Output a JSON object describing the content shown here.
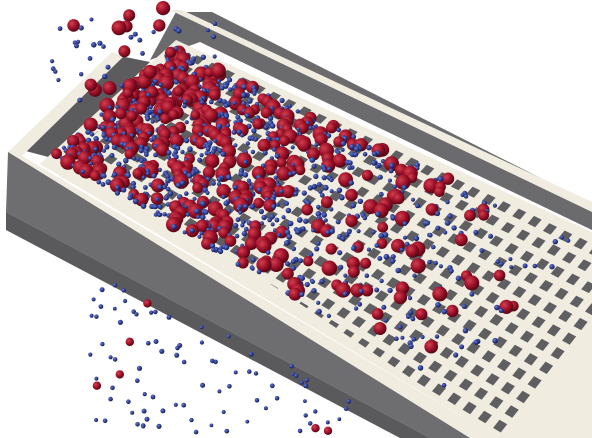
{
  "scene": {
    "subject": "vibrating-screen-particle-simulation",
    "background_color": "#ffffff",
    "colors": {
      "wall_side": "#6e6e70",
      "wall_side_dark": "#58585a",
      "wall_top": "#f1ece0",
      "screen_deck": "#f1ece0",
      "aperture": "#5f5f62",
      "coarse_particle": "#9c1028",
      "fine_particle": "#2a3a8c"
    },
    "particles": {
      "coarse_count": 330,
      "fine_count": 900,
      "undersize_fines_count": 160
    }
  }
}
